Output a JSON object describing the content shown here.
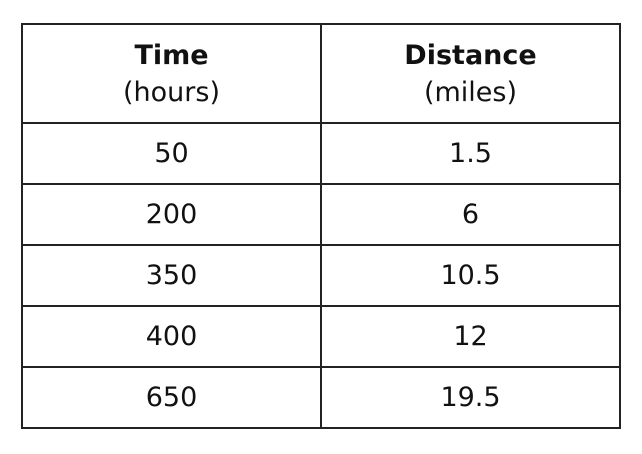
{
  "table": {
    "headers": [
      {
        "title": "Time",
        "unit": "(hours)"
      },
      {
        "title": "Distance",
        "unit": "(miles)"
      }
    ],
    "rows": [
      [
        50,
        1.5
      ],
      [
        200,
        6
      ],
      [
        350,
        10.5
      ],
      [
        400,
        12
      ],
      [
        650,
        19.5
      ]
    ]
  }
}
